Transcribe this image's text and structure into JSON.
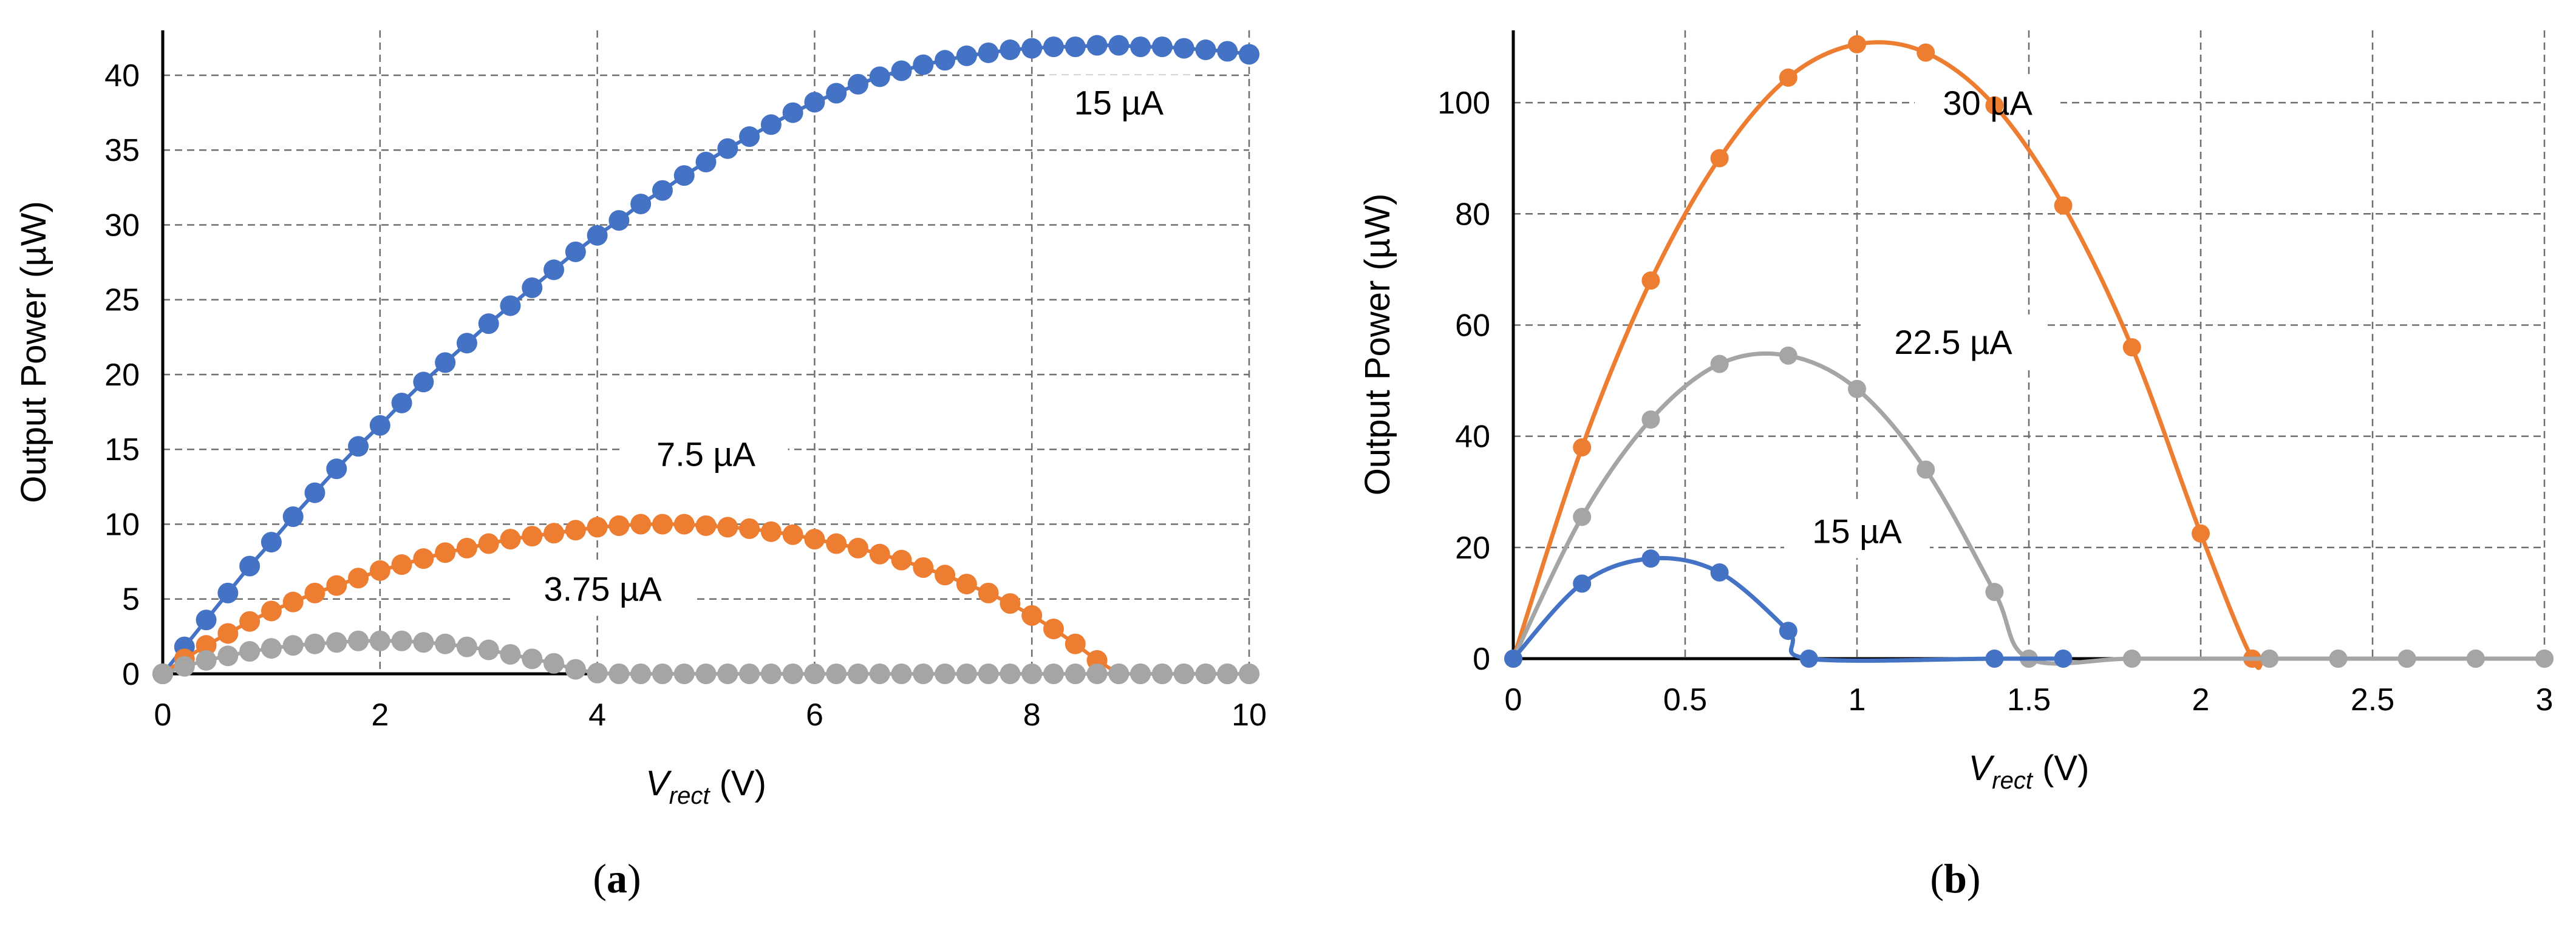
{
  "chart_data": [
    {
      "type": "scatter",
      "panel_label": "a",
      "xlabel": "V",
      "xlabel_sub": "rect",
      "xlabel_unit": " (V)",
      "ylabel": "Output Power (µW)",
      "xlim": [
        0,
        10
      ],
      "ylim": [
        0,
        43
      ],
      "xticks": [
        0,
        2,
        4,
        6,
        8,
        10
      ],
      "yticks": [
        0,
        5,
        10,
        15,
        20,
        25,
        30,
        35,
        40
      ],
      "grid": true,
      "annotations": [
        {
          "text": "15 µA",
          "x": 8.8,
          "y": 38.2,
          "series": "15 µA"
        },
        {
          "text": "7.5 µA",
          "x": 5.0,
          "y": 14.7,
          "series": "7.5 µA"
        },
        {
          "text": "3.75 µA",
          "x": 4.05,
          "y": 5.7,
          "series": "3.75 µA"
        }
      ],
      "series": [
        {
          "name": "15 µA",
          "color": "#4472C4",
          "x": [
            0,
            0.2,
            0.4,
            0.6,
            0.8,
            1,
            1.2,
            1.4,
            1.6,
            1.8,
            2,
            2.2,
            2.4,
            2.6,
            2.8,
            3,
            3.2,
            3.4,
            3.6,
            3.8,
            4,
            4.2,
            4.4,
            4.6,
            4.8,
            5,
            5.2,
            5.4,
            5.6,
            5.8,
            6,
            6.2,
            6.4,
            6.6,
            6.8,
            7,
            7.2,
            7.4,
            7.6,
            7.8,
            8,
            8.2,
            8.4,
            8.6,
            8.8,
            9,
            9.2,
            9.4,
            9.6,
            9.8,
            10
          ],
          "y": [
            0,
            1.8,
            3.6,
            5.4,
            7.2,
            8.8,
            10.5,
            12.1,
            13.7,
            15.2,
            16.6,
            18.1,
            19.5,
            20.8,
            22.1,
            23.4,
            24.6,
            25.8,
            27.0,
            28.2,
            29.3,
            30.3,
            31.4,
            32.3,
            33.3,
            34.2,
            35.1,
            35.9,
            36.7,
            37.5,
            38.2,
            38.8,
            39.4,
            39.9,
            40.3,
            40.7,
            41.0,
            41.3,
            41.5,
            41.7,
            41.8,
            41.9,
            41.9,
            42.0,
            42.0,
            41.9,
            41.9,
            41.8,
            41.7,
            41.6,
            41.4
          ]
        },
        {
          "name": "7.5 µA",
          "color": "#ED7D31",
          "x": [
            0,
            0.2,
            0.4,
            0.6,
            0.8,
            1,
            1.2,
            1.4,
            1.6,
            1.8,
            2,
            2.2,
            2.4,
            2.6,
            2.8,
            3,
            3.2,
            3.4,
            3.6,
            3.8,
            4,
            4.2,
            4.4,
            4.6,
            4.8,
            5,
            5.2,
            5.4,
            5.6,
            5.8,
            6,
            6.2,
            6.4,
            6.6,
            6.8,
            7,
            7.2,
            7.4,
            7.6,
            7.8,
            8,
            8.2,
            8.4,
            8.6,
            8.8,
            9,
            9.2,
            9.4,
            9.6,
            9.8,
            10
          ],
          "y": [
            0,
            1.0,
            1.9,
            2.7,
            3.5,
            4.2,
            4.8,
            5.4,
            5.9,
            6.4,
            6.9,
            7.3,
            7.7,
            8.1,
            8.4,
            8.7,
            9.0,
            9.2,
            9.4,
            9.6,
            9.8,
            9.9,
            10.0,
            10.0,
            10.0,
            9.9,
            9.8,
            9.7,
            9.5,
            9.3,
            9.0,
            8.7,
            8.4,
            8.0,
            7.6,
            7.1,
            6.6,
            6.0,
            5.4,
            4.7,
            3.9,
            3.0,
            2.0,
            0.9,
            0,
            0,
            0,
            0,
            0,
            0,
            0
          ]
        },
        {
          "name": "3.75 µA",
          "color": "#A5A5A5",
          "x": [
            0,
            0.2,
            0.4,
            0.6,
            0.8,
            1,
            1.2,
            1.4,
            1.6,
            1.8,
            2,
            2.2,
            2.4,
            2.6,
            2.8,
            3,
            3.2,
            3.4,
            3.6,
            3.8,
            4,
            4.2,
            4.4,
            4.6,
            4.8,
            5,
            5.2,
            5.4,
            5.6,
            5.8,
            6,
            6.2,
            6.4,
            6.6,
            6.8,
            7,
            7.2,
            7.4,
            7.6,
            7.8,
            8,
            8.2,
            8.4,
            8.6,
            8.8,
            9,
            9.2,
            9.4,
            9.6,
            9.8,
            10
          ],
          "y": [
            0,
            0.5,
            0.9,
            1.2,
            1.5,
            1.7,
            1.9,
            2.0,
            2.1,
            2.2,
            2.2,
            2.2,
            2.1,
            2.0,
            1.8,
            1.6,
            1.3,
            1.0,
            0.7,
            0.3,
            0.05,
            0,
            0,
            0,
            0,
            0,
            0,
            0,
            0,
            0,
            0,
            0,
            0,
            0,
            0,
            0,
            0,
            0,
            0,
            0,
            0,
            0,
            0,
            0,
            0,
            0,
            0,
            0,
            0,
            0,
            0
          ]
        }
      ]
    },
    {
      "type": "line",
      "panel_label": "b",
      "xlabel": "V",
      "xlabel_sub": "rect",
      "xlabel_unit": " (V)",
      "ylabel": "Output Power (µW)",
      "xlim": [
        0,
        3
      ],
      "ylim": [
        0,
        113
      ],
      "xticks": [
        0,
        0.5,
        1,
        1.5,
        2,
        2.5,
        3
      ],
      "yticks": [
        0,
        20,
        40,
        60,
        80,
        100
      ],
      "grid": true,
      "annotations": [
        {
          "text": "30 µA",
          "x": 1.38,
          "y": 100,
          "series": "30 µA"
        },
        {
          "text": "22.5 µA",
          "x": 1.28,
          "y": 57,
          "series": "22.5 µA"
        },
        {
          "text": "15 µA",
          "x": 1.0,
          "y": 23,
          "series": "15 µA"
        }
      ],
      "series": [
        {
          "name": "30 µA",
          "color": "#ED7D31",
          "x": [
            0,
            0.2,
            0.4,
            0.6,
            0.8,
            1,
            1.2,
            1.4,
            1.6,
            1.8,
            2,
            2.15,
            2.2,
            2.4,
            2.6,
            2.8,
            3
          ],
          "y": [
            0,
            38,
            68,
            90,
            104.5,
            110.5,
            109,
            99.5,
            81.5,
            56,
            22.5,
            0,
            0,
            0,
            0,
            0,
            0
          ]
        },
        {
          "name": "22.5 µA",
          "color": "#A5A5A5",
          "x": [
            0,
            0.2,
            0.4,
            0.6,
            0.8,
            1,
            1.2,
            1.4,
            1.5,
            1.8,
            2.2,
            2.4,
            2.6,
            2.8,
            3
          ],
          "y": [
            0,
            25.5,
            43,
            53,
            54.5,
            48.5,
            34,
            12,
            0,
            0,
            0,
            0,
            0,
            0,
            0
          ]
        },
        {
          "name": "15 µA",
          "color": "#4472C4",
          "x": [
            0,
            0.2,
            0.4,
            0.6,
            0.8,
            0.86,
            1.4,
            1.6
          ],
          "y": [
            0,
            13.5,
            18,
            15.5,
            5,
            0,
            0,
            0
          ]
        }
      ]
    }
  ]
}
